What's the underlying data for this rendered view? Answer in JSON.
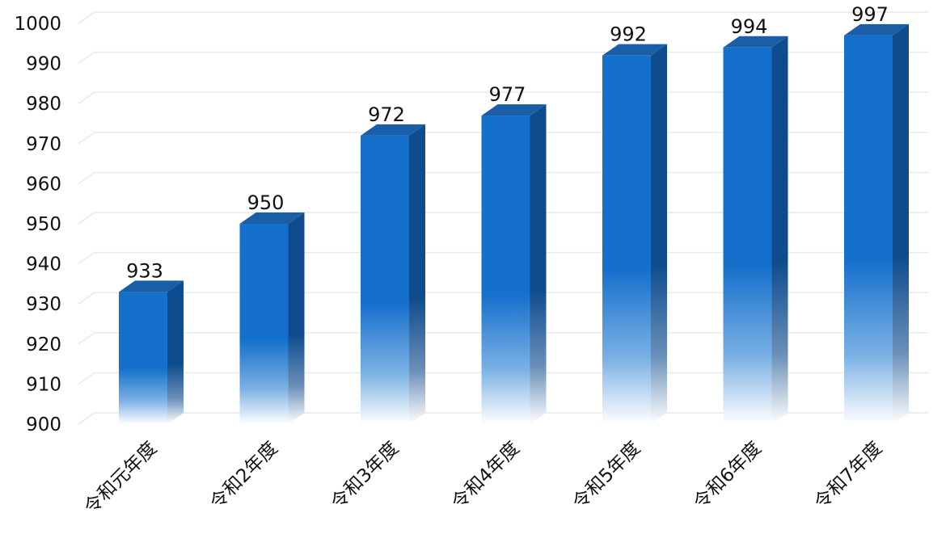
{
  "chart_data": {
    "type": "bar",
    "categories": [
      "令和元年度",
      "令和2年度",
      "令和3年度",
      "令和4年度",
      "令和5年度",
      "令和6年度",
      "令和7年度"
    ],
    "values": [
      933,
      950,
      972,
      977,
      992,
      994,
      997
    ],
    "ylim": [
      900,
      1000
    ],
    "yticks": [
      900,
      910,
      920,
      930,
      940,
      950,
      960,
      970,
      980,
      990,
      1000
    ],
    "title": "",
    "xlabel": "",
    "ylabel": "",
    "grid": true,
    "legend": "none",
    "style": "3d-gradient-bars",
    "colors": {
      "bar_front": "#1570cc",
      "bar_side": "#0e4c8e",
      "bar_top": "#1a5ea8",
      "gridline": "#e6e8ec",
      "text": "#111111"
    }
  }
}
